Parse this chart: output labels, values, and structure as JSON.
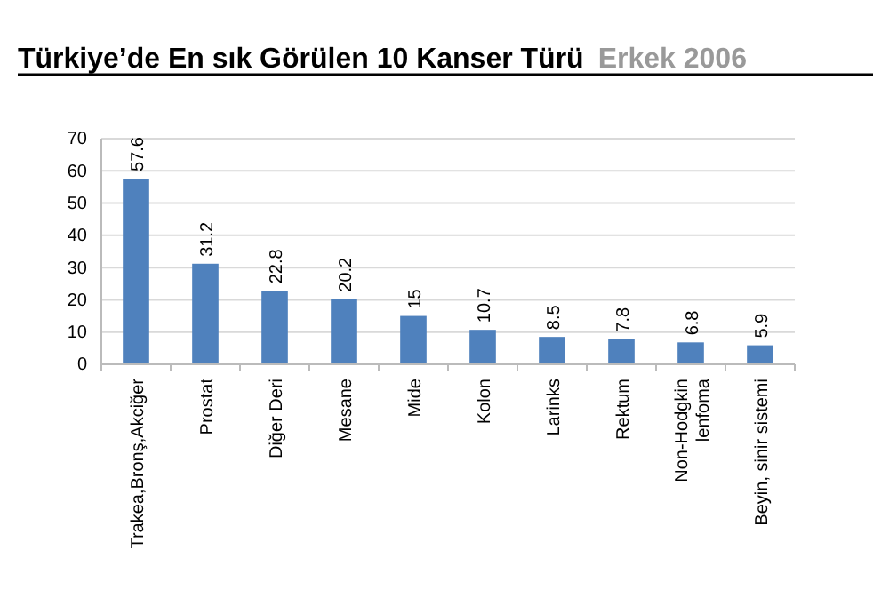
{
  "chart_data": {
    "type": "bar",
    "title": "Türkiye’de En sık Görülen 10 Kanser Türü",
    "subtitle": "Erkek 2006",
    "categories": [
      "Trakea,Bronş,Akciğer",
      "Prostat",
      "Diğer Deri",
      "Mesane",
      "Mide",
      "Kolon",
      "Larinks",
      "Rektum",
      "Non-Hodgkin lenfoma",
      "Beyin, sinir sistemi"
    ],
    "values": [
      57.6,
      31.2,
      22.8,
      20.2,
      15,
      10.7,
      8.5,
      7.8,
      6.8,
      5.9
    ],
    "color": "#4f81bd",
    "ylim": [
      0,
      70
    ],
    "yticks": [
      0,
      10,
      20,
      30,
      40,
      50,
      60,
      70
    ],
    "grid": "y",
    "data_labels": true
  }
}
